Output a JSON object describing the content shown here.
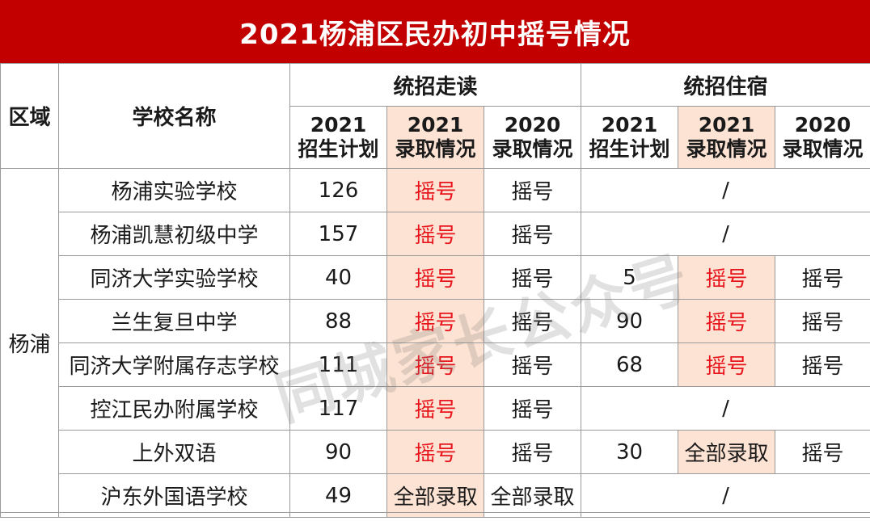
{
  "title": "2021杨浦区民办初中摇号情况",
  "headers": {
    "region": "区域",
    "school": "学校名称",
    "group_day": "统招走读",
    "group_board": "统招住宿",
    "year_2021": "2021",
    "year_2020": "2020",
    "plan": "招生计划",
    "admission": "录取情况"
  },
  "region": "杨浦",
  "rows": [
    {
      "school": "杨浦实验学校",
      "day_plan": "126",
      "day_2021": "摇号",
      "day_2020": "摇号",
      "board_none": "/"
    },
    {
      "school": "杨浦凯慧初级中学",
      "day_plan": "157",
      "day_2021": "摇号",
      "day_2020": "摇号",
      "board_none": "/"
    },
    {
      "school": "同济大学实验学校",
      "day_plan": "40",
      "day_2021": "摇号",
      "day_2020": "摇号",
      "board_plan": "5",
      "board_2021": "摇号",
      "board_2020": "摇号"
    },
    {
      "school": "兰生复旦中学",
      "day_plan": "88",
      "day_2021": "摇号",
      "day_2020": "摇号",
      "board_plan": "90",
      "board_2021": "摇号",
      "board_2020": "摇号"
    },
    {
      "school": "同济大学附属存志学校",
      "day_plan": "111",
      "day_2021": "摇号",
      "day_2020": "摇号",
      "board_plan": "68",
      "board_2021": "摇号",
      "board_2020": "摇号"
    },
    {
      "school": "控江民办附属学校",
      "day_plan": "117",
      "day_2021": "摇号",
      "day_2020": "摇号",
      "board_none": "/"
    },
    {
      "school": "上外双语",
      "day_plan": "90",
      "day_2021": "摇号",
      "day_2020": "摇号",
      "board_plan": "30",
      "board_2021": "全部录取",
      "board_2020": "摇号"
    },
    {
      "school": "沪东外国语学校",
      "day_plan": "49",
      "day_2021": "全部录取",
      "day_2020": "全部录取",
      "board_none": "/"
    }
  ],
  "watermark": "同城家长公众号",
  "colors": {
    "title_bg": "#c20000",
    "highlight_bg": "#fde3d3",
    "highlight_text": "#e8141c"
  }
}
